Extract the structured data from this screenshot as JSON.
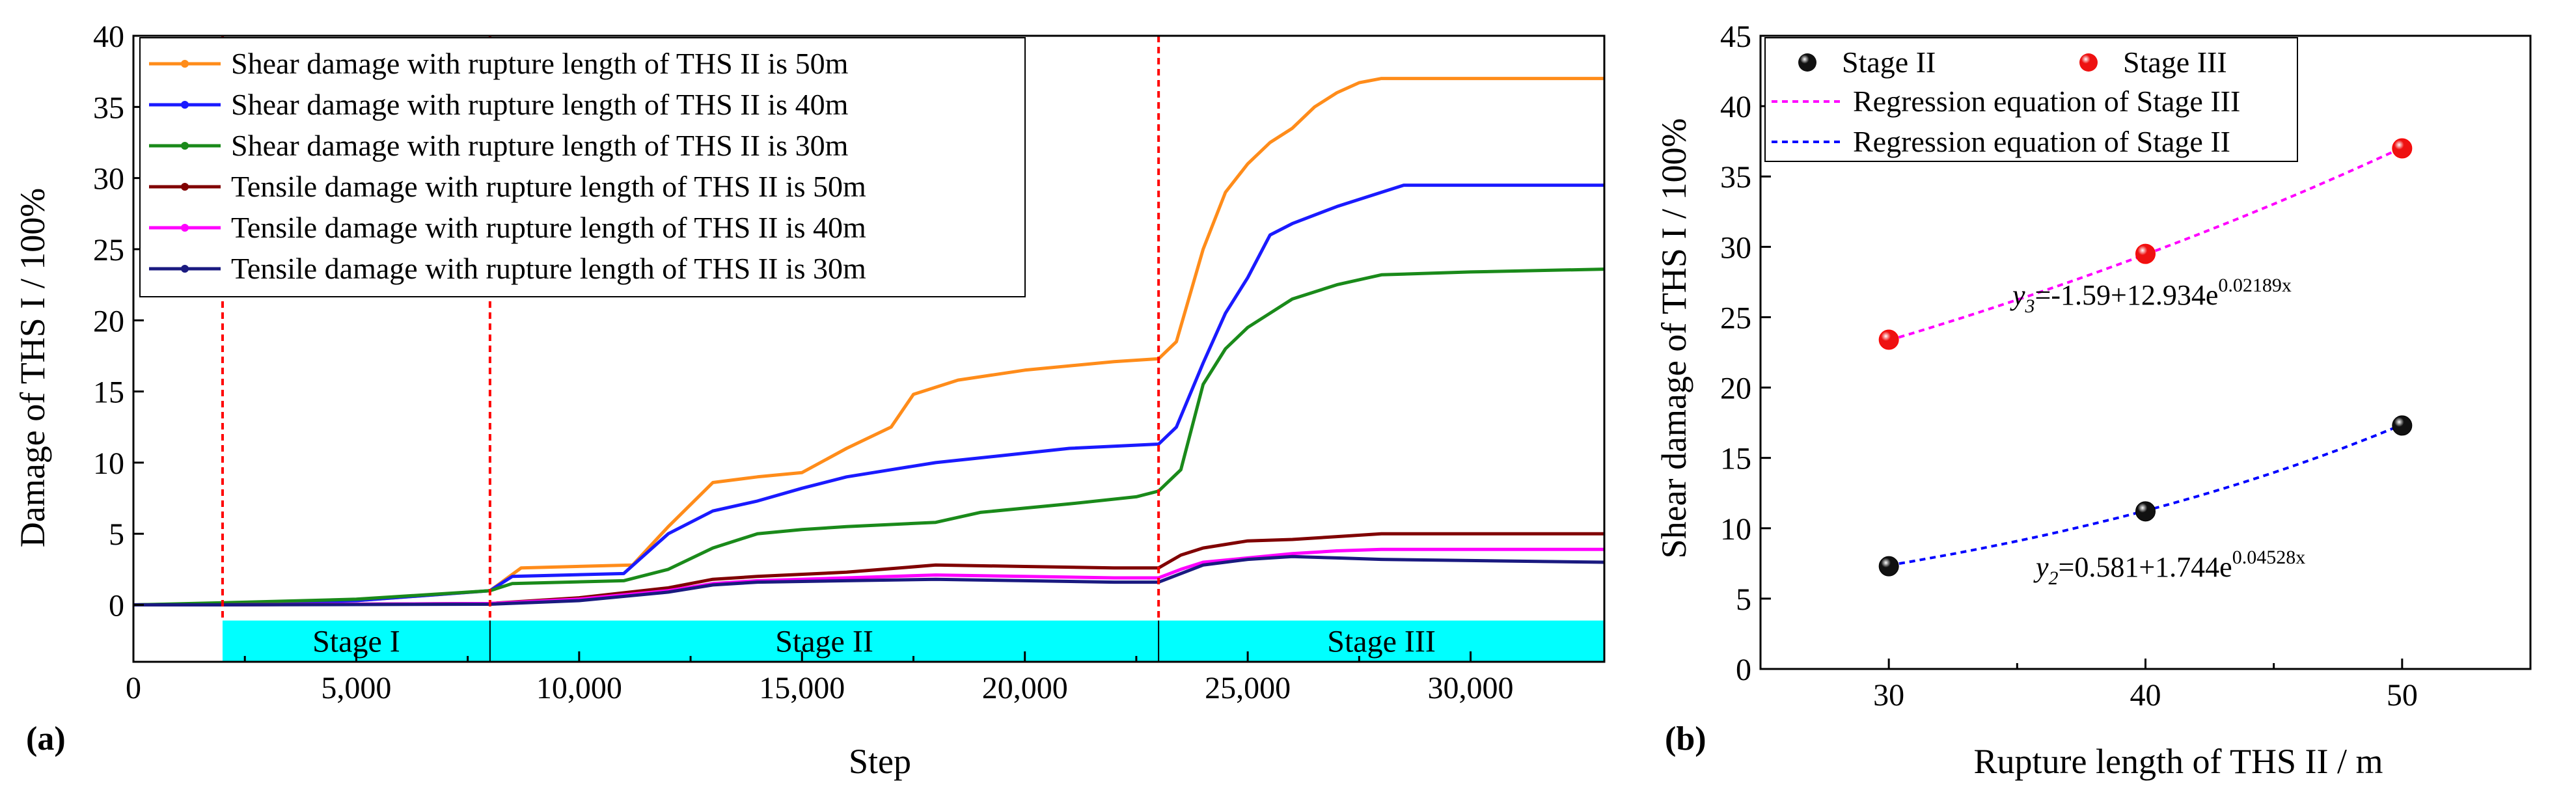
{
  "chart_data": [
    {
      "type": "line",
      "panel_label": "(a)",
      "xlabel": "Step",
      "ylabel": "Damage of THS I / 100%",
      "xlim": [
        0,
        33000
      ],
      "ylim": [
        -4,
        40
      ],
      "xticks": [
        0,
        5000,
        10000,
        15000,
        20000,
        25000,
        30000
      ],
      "xtick_labels": [
        "0",
        "5,000",
        "10,000",
        "15,000",
        "20,000",
        "25,000",
        "30,000"
      ],
      "yticks": [
        0,
        5,
        10,
        15,
        20,
        25,
        30,
        35,
        40
      ],
      "ytick_labels": [
        "0",
        "5",
        "10",
        "15",
        "20",
        "25",
        "30",
        "35",
        "40"
      ],
      "stage_boundaries": [
        2000,
        8000,
        23000
      ],
      "stage_band": {
        "y_range": [
          -4,
          -1.1
        ],
        "color": "#00ffff"
      },
      "stages": [
        {
          "label": "Stage I",
          "x_range": [
            2000,
            8000
          ]
        },
        {
          "label": "Stage II",
          "x_range": [
            8000,
            23000
          ]
        },
        {
          "label": "Stage III",
          "x_range": [
            23000,
            33000
          ]
        }
      ],
      "legend_position": "top-left",
      "series": [
        {
          "name": "Shear damage with rupture length of THS II is 50m",
          "color": "#ff8c1a",
          "points": [
            [
              0,
              0
            ],
            [
              2000,
              0.1
            ],
            [
              5000,
              0.3
            ],
            [
              8000,
              1.0
            ],
            [
              8700,
              2.6
            ],
            [
              11200,
              2.8
            ],
            [
              12000,
              5.5
            ],
            [
              13000,
              8.6
            ],
            [
              14000,
              9.0
            ],
            [
              15000,
              9.3
            ],
            [
              16000,
              11.0
            ],
            [
              17000,
              12.5
            ],
            [
              17500,
              14.8
            ],
            [
              18500,
              15.8
            ],
            [
              20000,
              16.5
            ],
            [
              22000,
              17.1
            ],
            [
              23000,
              17.3
            ],
            [
              23400,
              18.5
            ],
            [
              24000,
              25.0
            ],
            [
              24500,
              29.0
            ],
            [
              25000,
              31.0
            ],
            [
              25500,
              32.5
            ],
            [
              26000,
              33.5
            ],
            [
              26500,
              35.0
            ],
            [
              27000,
              36.0
            ],
            [
              27500,
              36.7
            ],
            [
              28000,
              37.0
            ],
            [
              33000,
              37.0
            ]
          ]
        },
        {
          "name": "Shear damage with rupture length of THS II is 40m",
          "color": "#1a1aff",
          "points": [
            [
              0,
              0
            ],
            [
              2000,
              0.1
            ],
            [
              5000,
              0.3
            ],
            [
              8000,
              1.0
            ],
            [
              8500,
              2.0
            ],
            [
              11000,
              2.2
            ],
            [
              12000,
              5.0
            ],
            [
              13000,
              6.6
            ],
            [
              14000,
              7.3
            ],
            [
              15000,
              8.2
            ],
            [
              16000,
              9.0
            ],
            [
              17000,
              9.5
            ],
            [
              18000,
              10.0
            ],
            [
              19500,
              10.5
            ],
            [
              21000,
              11.0
            ],
            [
              23000,
              11.3
            ],
            [
              23400,
              12.5
            ],
            [
              24000,
              17.0
            ],
            [
              24500,
              20.5
            ],
            [
              25000,
              23.0
            ],
            [
              25500,
              26.0
            ],
            [
              26000,
              26.8
            ],
            [
              27000,
              28.0
            ],
            [
              28000,
              29.0
            ],
            [
              28500,
              29.5
            ],
            [
              33000,
              29.5
            ]
          ]
        },
        {
          "name": "Shear damage with rupture length of THS II is 30m",
          "color": "#1a8a1a",
          "points": [
            [
              0,
              0
            ],
            [
              2000,
              0.15
            ],
            [
              5000,
              0.4
            ],
            [
              8000,
              1.0
            ],
            [
              8500,
              1.5
            ],
            [
              11000,
              1.7
            ],
            [
              12000,
              2.5
            ],
            [
              13000,
              4.0
            ],
            [
              14000,
              5.0
            ],
            [
              15000,
              5.3
            ],
            [
              16000,
              5.5
            ],
            [
              18000,
              5.8
            ],
            [
              19000,
              6.5
            ],
            [
              21000,
              7.1
            ],
            [
              22500,
              7.6
            ],
            [
              23000,
              8.0
            ],
            [
              23500,
              9.5
            ],
            [
              24000,
              15.5
            ],
            [
              24500,
              18.0
            ],
            [
              25000,
              19.5
            ],
            [
              25500,
              20.5
            ],
            [
              26000,
              21.5
            ],
            [
              27000,
              22.5
            ],
            [
              28000,
              23.2
            ],
            [
              30000,
              23.4
            ],
            [
              33000,
              23.6
            ]
          ]
        },
        {
          "name": "Tensile damage with rupture length of THS II is 50m",
          "color": "#800000",
          "points": [
            [
              0,
              0
            ],
            [
              2000,
              0
            ],
            [
              8000,
              0.1
            ],
            [
              10000,
              0.5
            ],
            [
              12000,
              1.2
            ],
            [
              13000,
              1.8
            ],
            [
              14000,
              2.0
            ],
            [
              16000,
              2.3
            ],
            [
              18000,
              2.8
            ],
            [
              20000,
              2.7
            ],
            [
              22000,
              2.6
            ],
            [
              23000,
              2.6
            ],
            [
              23500,
              3.5
            ],
            [
              24000,
              4.0
            ],
            [
              25000,
              4.5
            ],
            [
              26000,
              4.6
            ],
            [
              27000,
              4.8
            ],
            [
              28000,
              5.0
            ],
            [
              33000,
              5.0
            ]
          ]
        },
        {
          "name": "Tensile damage with rupture length of THS II is 40m",
          "color": "#ff00ff",
          "points": [
            [
              0,
              0
            ],
            [
              2000,
              0
            ],
            [
              8000,
              0.1
            ],
            [
              10000,
              0.4
            ],
            [
              12000,
              1.0
            ],
            [
              13000,
              1.5
            ],
            [
              14000,
              1.7
            ],
            [
              16000,
              1.9
            ],
            [
              18000,
              2.1
            ],
            [
              20000,
              2.0
            ],
            [
              22000,
              1.9
            ],
            [
              23000,
              1.9
            ],
            [
              23500,
              2.5
            ],
            [
              24000,
              3.0
            ],
            [
              25000,
              3.3
            ],
            [
              26000,
              3.6
            ],
            [
              27000,
              3.8
            ],
            [
              28000,
              3.9
            ],
            [
              33000,
              3.9
            ]
          ]
        },
        {
          "name": "Tensile damage with rupture length of THS II is 30m",
          "color": "#1a1a80",
          "points": [
            [
              0,
              0
            ],
            [
              2000,
              0
            ],
            [
              8000,
              0.05
            ],
            [
              10000,
              0.3
            ],
            [
              12000,
              0.9
            ],
            [
              13000,
              1.4
            ],
            [
              14000,
              1.6
            ],
            [
              16000,
              1.7
            ],
            [
              18000,
              1.8
            ],
            [
              20000,
              1.7
            ],
            [
              22000,
              1.6
            ],
            [
              23000,
              1.6
            ],
            [
              23500,
              2.2
            ],
            [
              24000,
              2.8
            ],
            [
              25000,
              3.2
            ],
            [
              26000,
              3.4
            ],
            [
              27000,
              3.3
            ],
            [
              28000,
              3.2
            ],
            [
              33000,
              3.0
            ]
          ]
        }
      ]
    },
    {
      "type": "scatter",
      "panel_label": "(b)",
      "xlabel": "Rupture length of THS II / m",
      "ylabel": "Shear damage of THS I / 100%",
      "xlim": [
        25,
        55
      ],
      "ylim": [
        0,
        45
      ],
      "xticks": [
        30,
        40,
        50
      ],
      "yticks": [
        0,
        5,
        10,
        15,
        20,
        25,
        30,
        35,
        40,
        45
      ],
      "legend_position": "top-left",
      "series": [
        {
          "name": "Stage II",
          "color": "#000000",
          "x": [
            30,
            40,
            50
          ],
          "y": [
            7.3,
            11.2,
            17.3
          ]
        },
        {
          "name": "Stage III",
          "color": "#ff0000",
          "x": [
            30,
            40,
            50
          ],
          "y": [
            23.4,
            29.5,
            37.0
          ]
        }
      ],
      "regressions": [
        {
          "name": "Regression equation of Stage III",
          "color": "#ff00ff",
          "a": -1.59,
          "b": 12.934,
          "c": 0.02189,
          "equation": {
            "var": "y",
            "sub": "3",
            "rhs": "=-1.59+12.934e",
            "exp": "0.02189",
            "x": "x"
          }
        },
        {
          "name": "Regression equation of Stage II",
          "color": "#0000ff",
          "a": 0.581,
          "b": 1.744,
          "c": 0.04528,
          "equation": {
            "var": "y",
            "sub": "2",
            "rhs": "=0.581+1.744e",
            "exp": "0.04528",
            "x": "x"
          }
        }
      ]
    }
  ]
}
